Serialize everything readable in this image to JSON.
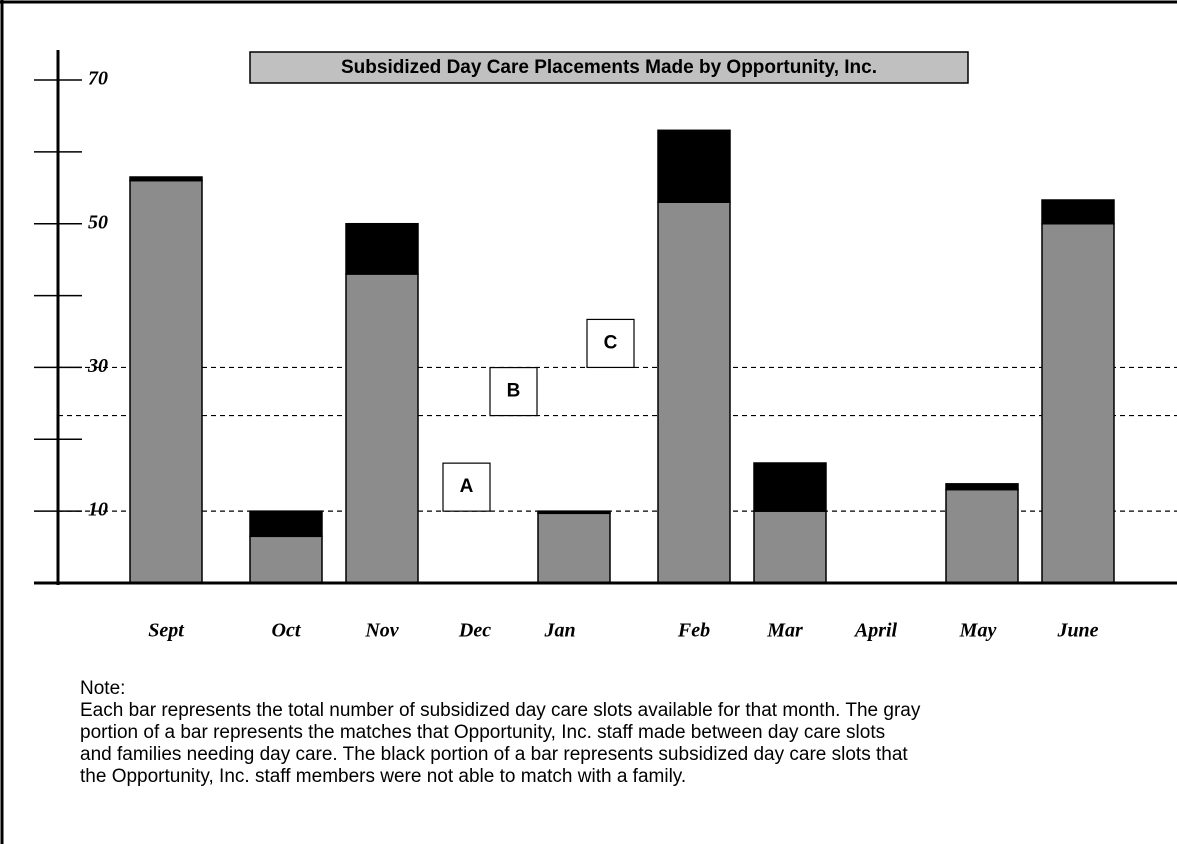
{
  "chart_data": {
    "type": "stacked_bar",
    "title": "Subsidized Day Care Placements Made by Opportunity, Inc.",
    "categories": [
      "Sept",
      "Oct",
      "Nov",
      "Dec",
      "Jan",
      "Feb",
      "Mar",
      "April",
      "May",
      "June"
    ],
    "series": [
      {
        "color": "#8c8c8c",
        "values": [
          56,
          6.5,
          43,
          0,
          9.7,
          53,
          10,
          0,
          13,
          50
        ]
      },
      {
        "color": "#000000",
        "values": [
          0.5,
          3.5,
          7,
          0,
          0.3,
          10,
          6.7,
          0,
          0.8,
          3.3
        ]
      }
    ],
    "ylim": [
      0,
      70
    ],
    "yticks": [
      10,
      30,
      50,
      70
    ],
    "yticks_minor": [
      20,
      40,
      60
    ],
    "reference_lines": [
      {
        "label": "A",
        "value": 10
      },
      {
        "label": "B",
        "value": 23.3
      },
      {
        "label": "C",
        "value": 30
      }
    ],
    "note": {
      "heading": "Note:",
      "lines": [
        "Each bar represents the total number of subsidized day care slots available for that month. The gray",
        "portion of a bar represents the matches that Opportunity, Inc. staff made between day care slots",
        "and families needing day care. The black portion of a bar represents subsidized day care slots that",
        "the Opportunity, Inc. staff members were not able to match with a family."
      ]
    }
  }
}
